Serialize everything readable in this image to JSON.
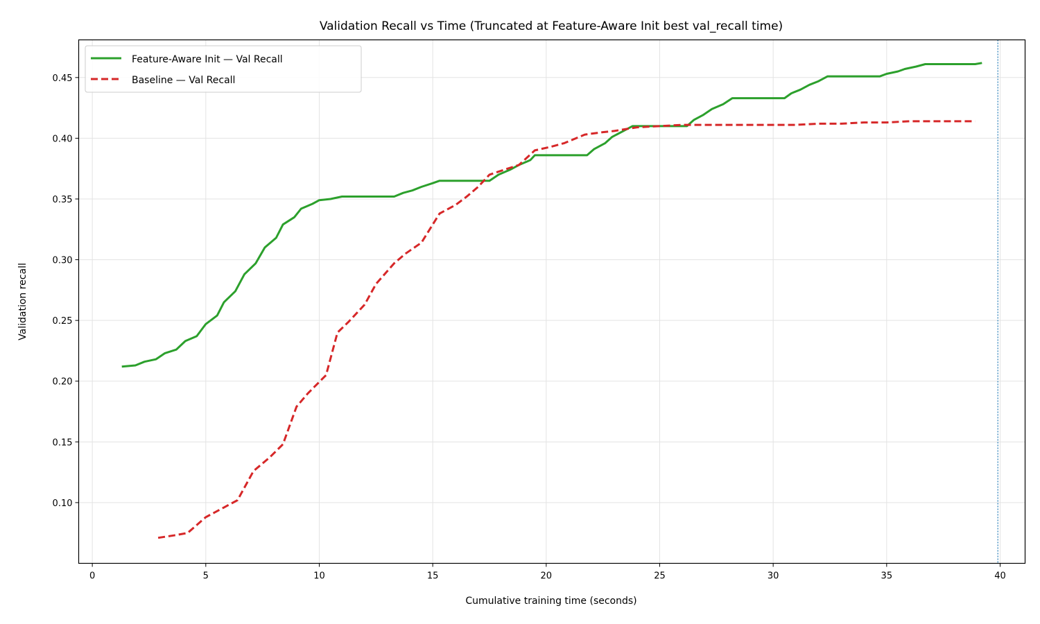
{
  "chart_data": {
    "type": "line",
    "title": "Validation Recall vs Time (Truncated at Feature-Aware Init best val_recall time)",
    "xlabel": "Cumulative training time (seconds)",
    "ylabel": "Validation recall",
    "xlim": [
      -0.6,
      41.1
    ],
    "ylim": [
      0.05,
      0.481
    ],
    "xticks": [
      0,
      5,
      10,
      15,
      20,
      25,
      30,
      35,
      40
    ],
    "xtick_labels": [
      "0",
      "5",
      "10",
      "15",
      "20",
      "25",
      "30",
      "35",
      "40"
    ],
    "yticks": [
      0.1,
      0.15,
      0.2,
      0.25,
      0.3,
      0.35,
      0.4,
      0.45
    ],
    "ytick_labels": [
      "0.10",
      "0.15",
      "0.20",
      "0.25",
      "0.30",
      "0.35",
      "0.40",
      "0.45"
    ],
    "grid": true,
    "legend_position": "top-left",
    "vline": {
      "x": 39.9,
      "color": "#1f77b4"
    },
    "series": [
      {
        "name": "Feature-Aware Init — Val Recall",
        "color": "#2ca02c",
        "style": "solid",
        "x": [
          1.3,
          1.9,
          2.3,
          2.8,
          3.2,
          3.7,
          4.1,
          4.6,
          5.0,
          5.5,
          5.8,
          6.3,
          6.7,
          7.2,
          7.6,
          8.1,
          8.4,
          8.9,
          9.2,
          9.7,
          10.0,
          10.5,
          11.0,
          13.3,
          13.7,
          14.1,
          14.5,
          15.0,
          15.3,
          17.5,
          17.9,
          18.4,
          18.8,
          19.3,
          19.5,
          21.8,
          22.1,
          22.6,
          22.9,
          23.4,
          23.8,
          26.2,
          26.5,
          26.9,
          27.3,
          27.8,
          28.2,
          30.5,
          30.8,
          31.2,
          31.6,
          32.0,
          32.4,
          34.7,
          35.0,
          35.5,
          35.8,
          36.3,
          36.7,
          38.9,
          39.2
        ],
        "y": [
          0.212,
          0.213,
          0.216,
          0.218,
          0.223,
          0.226,
          0.233,
          0.237,
          0.247,
          0.254,
          0.265,
          0.274,
          0.288,
          0.297,
          0.31,
          0.318,
          0.329,
          0.335,
          0.342,
          0.346,
          0.349,
          0.35,
          0.352,
          0.352,
          0.355,
          0.357,
          0.36,
          0.363,
          0.365,
          0.365,
          0.37,
          0.374,
          0.378,
          0.382,
          0.386,
          0.386,
          0.391,
          0.396,
          0.401,
          0.406,
          0.41,
          0.41,
          0.415,
          0.419,
          0.424,
          0.428,
          0.433,
          0.433,
          0.437,
          0.44,
          0.444,
          0.447,
          0.451,
          0.451,
          0.453,
          0.455,
          0.457,
          0.459,
          0.461,
          0.461,
          0.462
        ]
      },
      {
        "name": "Baseline — Val Recall",
        "color": "#d62728",
        "style": "dashed",
        "x": [
          2.9,
          3.6,
          4.2,
          5.0,
          5.8,
          6.4,
          7.1,
          7.8,
          8.4,
          9.0,
          9.5,
          10.3,
          10.8,
          11.3,
          12.0,
          12.5,
          13.3,
          13.8,
          14.5,
          15.3,
          16.0,
          16.5,
          17.0,
          17.5,
          18.3,
          18.8,
          19.5,
          20.2,
          20.8,
          21.7,
          22.5,
          23.0,
          24.0,
          25.0,
          26.0,
          28.0,
          30.0,
          31.0,
          32.0,
          33.0,
          34.0,
          35.0,
          36.0,
          37.0,
          38.0,
          38.9
        ],
        "y": [
          0.071,
          0.073,
          0.075,
          0.088,
          0.096,
          0.102,
          0.126,
          0.137,
          0.148,
          0.179,
          0.19,
          0.205,
          0.24,
          0.249,
          0.263,
          0.28,
          0.297,
          0.305,
          0.314,
          0.338,
          0.345,
          0.352,
          0.36,
          0.37,
          0.375,
          0.378,
          0.39,
          0.393,
          0.396,
          0.403,
          0.405,
          0.406,
          0.409,
          0.41,
          0.411,
          0.411,
          0.411,
          0.411,
          0.412,
          0.412,
          0.413,
          0.413,
          0.414,
          0.414,
          0.414,
          0.414
        ]
      }
    ]
  }
}
